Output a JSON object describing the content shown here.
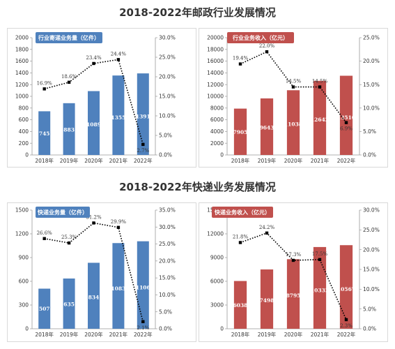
{
  "titles": {
    "top": "2018-2022年邮政行业发展情况",
    "bottom": "2018-2022年快递业务发展情况"
  },
  "chart_data": [
    {
      "type": "bar",
      "title": "",
      "legend": "行业寄递业务量（亿件）",
      "categories": [
        "2018年",
        "2019年",
        "2020年",
        "2021年",
        "2022年"
      ],
      "series": [
        {
          "name": "行业寄递业务量（亿件）",
          "type": "bar",
          "axis": "left",
          "values": [
            745,
            883,
            1089,
            1355,
            1391
          ],
          "labels": [
            "745",
            "883",
            "1089",
            "1355",
            "1391"
          ]
        },
        {
          "type": "line",
          "axis": "right",
          "values": [
            16.9,
            18.6,
            23.4,
            24.4,
            2.7
          ],
          "labels": [
            "16.9%",
            "18.6%",
            "23.4%",
            "24.4%",
            "2.7%"
          ]
        }
      ],
      "ylim": [
        0,
        2000
      ],
      "yticks": [
        "0",
        "200",
        "400",
        "600",
        "800",
        "1000",
        "1200",
        "1400",
        "1600",
        "1800",
        "2000"
      ],
      "y2lim": [
        0,
        30
      ],
      "y2ticks": [
        "0.0%",
        "5.0%",
        "10.0%",
        "15.0%",
        "20.0%",
        "25.0%",
        "30.0%"
      ],
      "bar_color": "#4f81bd",
      "legend_placement": "top-left"
    },
    {
      "type": "bar",
      "title": "",
      "legend": "行业业务收入（亿元）",
      "categories": [
        "2018年",
        "2019年",
        "2020年",
        "2021年",
        "2022年"
      ],
      "series": [
        {
          "name": "行业业务收入（亿元）",
          "type": "bar",
          "axis": "left",
          "values": [
            7905,
            9643,
            11038,
            12642,
            13510
          ],
          "labels": [
            "7905",
            "9643",
            "11038",
            "12642",
            "13510"
          ]
        },
        {
          "type": "line",
          "axis": "right",
          "values": [
            19.4,
            22.0,
            14.5,
            14.5,
            6.9
          ],
          "labels": [
            "19.4%",
            "22.0%",
            "14.5%",
            "14.5%",
            "6.9%"
          ]
        }
      ],
      "ylim": [
        0,
        20000
      ],
      "yticks": [
        "0",
        "2000",
        "4000",
        "6000",
        "8000",
        "10000",
        "12000",
        "14000",
        "16000",
        "18000",
        "20000"
      ],
      "y2lim": [
        0,
        25
      ],
      "y2ticks": [
        "0.0%",
        "5.0%",
        "10.0%",
        "15.0%",
        "20.0%",
        "25.0%"
      ],
      "bar_color": "#c0504d",
      "legend_placement": "top-center"
    },
    {
      "type": "bar",
      "title": "",
      "legend": "快递业务量（亿件）",
      "categories": [
        "2018年",
        "2019年",
        "2020年",
        "2021年",
        "2022年"
      ],
      "series": [
        {
          "name": "快递业务量（亿件）",
          "type": "bar",
          "axis": "left",
          "values": [
            507,
            635,
            834,
            1083,
            1106
          ],
          "labels": [
            "507",
            "635",
            "834",
            "1083",
            "1106"
          ]
        },
        {
          "type": "line",
          "axis": "right",
          "values": [
            26.6,
            25.3,
            31.2,
            29.9,
            2.1
          ],
          "labels": [
            "26.6%",
            "25.3%",
            "31.2%",
            "29.9%",
            "2.1%"
          ]
        }
      ],
      "ylim": [
        0,
        1500
      ],
      "yticks": [
        "0",
        "300",
        "600",
        "900",
        "1200",
        "1500"
      ],
      "y2lim": [
        0,
        35
      ],
      "y2ticks": [
        "0.0%",
        "5.0%",
        "10.0%",
        "15.0%",
        "20.0%",
        "25.0%",
        "30.0%",
        "35.0%"
      ],
      "bar_color": "#4f81bd",
      "legend_placement": "top-left"
    },
    {
      "type": "bar",
      "title": "",
      "legend": "快递业务收入（亿元）",
      "categories": [
        "2018年",
        "2019年",
        "2020年",
        "2021年",
        "2022年"
      ],
      "series": [
        {
          "name": "快递业务收入（亿元）",
          "type": "bar",
          "axis": "left",
          "values": [
            6038,
            7498,
            8795,
            10332,
            10567
          ],
          "labels": [
            "6038",
            "7498",
            "8795",
            "10332",
            "10567"
          ]
        },
        {
          "type": "line",
          "axis": "right",
          "values": [
            21.8,
            24.2,
            17.3,
            17.5,
            2.3
          ],
          "labels": [
            "21.8%",
            "24.2%",
            "17.3%",
            "17.5%",
            "2.3%"
          ]
        }
      ],
      "ylim": [
        0,
        15000
      ],
      "yticks": [
        "0",
        "3000",
        "6000",
        "9000",
        "12000",
        "15000"
      ],
      "y2lim": [
        0,
        30
      ],
      "y2ticks": [
        "0.0%",
        "5.0%",
        "10.0%",
        "15.0%",
        "20.0%",
        "25.0%",
        "30.0%"
      ],
      "bar_color": "#c0504d",
      "legend_placement": "top-left"
    }
  ]
}
